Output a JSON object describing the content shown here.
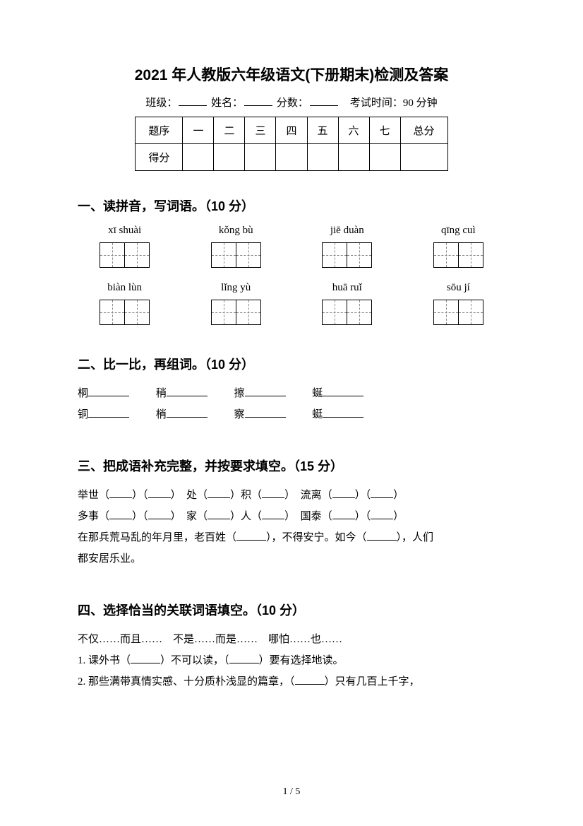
{
  "title": "2021 年人教版六年级语文(下册期末)检测及答案",
  "info": {
    "class_label": "班级：",
    "name_label": "姓名：",
    "score_label": "分数：",
    "time_label": "考试时间：90 分钟"
  },
  "score_table": {
    "row1": [
      "题序",
      "一",
      "二",
      "三",
      "四",
      "五",
      "六",
      "七",
      "总分"
    ],
    "row2_label": "得分"
  },
  "section1": {
    "heading": "一、读拼音，写词语。（10 分）",
    "pinyins_row1": [
      "xī shuài",
      "kǒng bù",
      "jiē duàn",
      "qīng cuì"
    ],
    "pinyins_row2": [
      "biàn lùn",
      "lǐng yù",
      "huā ruǐ",
      "sōu jí"
    ]
  },
  "section2": {
    "heading": "二、比一比，再组词。（10 分）",
    "pairs": [
      [
        "桐",
        "稍",
        "擦",
        "蜒"
      ],
      [
        "铜",
        "梢",
        "察",
        "蜓"
      ]
    ]
  },
  "section3": {
    "heading": "三、把成语补充完整，并按要求填空。（15 分）",
    "line1_a": "举世（",
    "line1_b": "）（",
    "line1_c": "）　处（",
    "line1_d": "）积（",
    "line1_e": "）　流离（",
    "line1_f": "）（",
    "line1_g": "）",
    "line2_a": "多事（",
    "line2_b": "）（",
    "line2_c": "）　家（",
    "line2_d": "）人（",
    "line2_e": "）　国泰（",
    "line2_f": "）（",
    "line2_g": "）",
    "line3_a": "在那兵荒马乱的年月里，老百姓（",
    "line3_b": "），不得安宁。如今（",
    "line3_c": "），人们",
    "line4": "都安居乐业。"
  },
  "section4": {
    "heading": "四、选择恰当的关联词语填空。（10 分）",
    "options": "不仅……而且……　不是……而是……　哪怕……也……",
    "q1_a": "1. 课外书（",
    "q1_b": "）不可以读，（",
    "q1_c": "）要有选择地读。",
    "q2_a": "2. 那些满带真情实感、十分质朴浅显的篇章，（",
    "q2_b": "）只有几百上千字，"
  },
  "footer": "1 / 5"
}
